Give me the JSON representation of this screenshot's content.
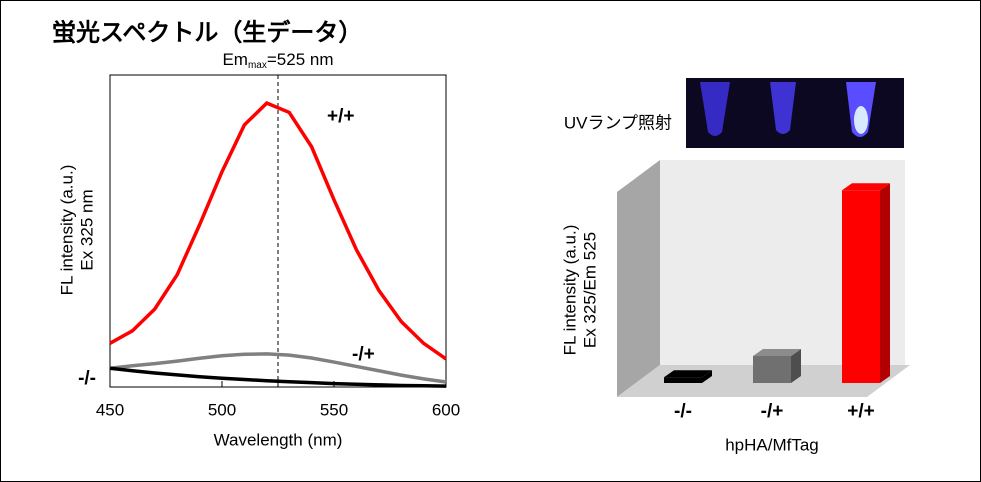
{
  "title": "蛍光スペクトル（生データ）",
  "chart_data": [
    {
      "type": "line",
      "annotation": {
        "main": "Em",
        "sub": "max",
        "rest": "=525 nm"
      },
      "vline": 525,
      "xlabel": "Wavelength (nm)",
      "ylabel": [
        "FL intensity (a.u.)",
        "Ex 325 nm"
      ],
      "x": [
        450,
        460,
        470,
        480,
        490,
        500,
        510,
        520,
        530,
        540,
        550,
        560,
        570,
        580,
        590,
        600
      ],
      "xlim": [
        450,
        600
      ],
      "xticks": [
        450,
        500,
        550,
        600
      ],
      "ylim": [
        0,
        100
      ],
      "series": [
        {
          "name": "+/+",
          "color": "#ff0000",
          "values": [
            14,
            18,
            25,
            36,
            52,
            69,
            84,
            91,
            88,
            77,
            60,
            44,
            31,
            21,
            14,
            9
          ]
        },
        {
          "name": "-/+",
          "color": "#808080",
          "values": [
            6,
            6.8,
            7.5,
            8.3,
            9.2,
            10,
            10.5,
            10.6,
            10.2,
            9.3,
            8,
            6.6,
            5.2,
            3.8,
            2.6,
            1.6
          ]
        },
        {
          "name": "-/-",
          "color": "#000000",
          "values": [
            6,
            5.2,
            4.5,
            3.9,
            3.3,
            2.8,
            2.4,
            2,
            1.7,
            1.4,
            1.1,
            0.9,
            0.7,
            0.5,
            0.4,
            0.3
          ]
        }
      ]
    },
    {
      "type": "bar3d",
      "image_caption": "UVランプ照射",
      "xlabel": "hpHA/MfTag",
      "ylabel": [
        "FL intensity (a.u.)",
        "Ex 325/Em 525"
      ],
      "categories": [
        "-/-",
        "-/+",
        "+/+"
      ],
      "colors": [
        "#000000",
        "#707070",
        "#ff0000"
      ],
      "values": [
        3,
        14,
        100
      ],
      "ylim": [
        0,
        110
      ]
    }
  ]
}
